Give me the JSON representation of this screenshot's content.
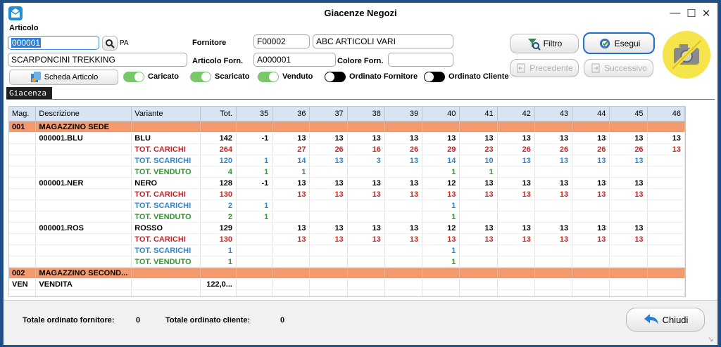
{
  "window": {
    "title": "Giacenze Negozi"
  },
  "articolo": {
    "group_label": "Articolo",
    "code_value": "000001",
    "code_suffix": "PA",
    "description_value": "SCARPONCINI TREKKING",
    "scheda_label": "Scheda Articolo"
  },
  "fornitore": {
    "label": "Fornitore",
    "code_value": "F00002",
    "name_value": "ABC ARTICOLI VARI",
    "articolo_forn_label": "Articolo Forn.",
    "articolo_forn_value": "A000001",
    "colore_forn_label": "Colore Forn.",
    "colore_forn_value": ""
  },
  "buttons": {
    "filtro": "Filtro",
    "esegui": "Esegui",
    "precedente": "Precedente",
    "successivo": "Successivo",
    "chiudi": "Chiudi"
  },
  "toggles": [
    {
      "label": "Caricato",
      "state": "on"
    },
    {
      "label": "Scaricato",
      "state": "on"
    },
    {
      "label": "Venduto",
      "state": "on"
    },
    {
      "label": "Ordinato Fornitore",
      "state": "off"
    },
    {
      "label": "Ordinato Cliente",
      "state": "off"
    }
  ],
  "tab": {
    "label": "Giacenza"
  },
  "grid": {
    "headers": [
      "Mag.",
      "Descrizione",
      "Variante",
      "Tot.",
      "35",
      "36",
      "37",
      "38",
      "39",
      "40",
      "41",
      "42",
      "43",
      "44",
      "45",
      "46"
    ],
    "rows": [
      {
        "type": "group",
        "cells": [
          "001",
          "MAGAZZINO SEDE",
          "",
          "",
          "",
          "",
          "",
          "",
          "",
          "",
          "",
          "",
          "",
          "",
          "",
          ""
        ]
      },
      {
        "type": "data",
        "color": "black",
        "cells": [
          "",
          "000001.BLU",
          "BLU",
          "142",
          "-1",
          "13",
          "13",
          "13",
          "13",
          "13",
          "13",
          "13",
          "13",
          "13",
          "13",
          "13"
        ]
      },
      {
        "type": "data",
        "color": "red",
        "cells": [
          "",
          "",
          "TOT. CARICHI",
          "264",
          "",
          "27",
          "26",
          "16",
          "26",
          "29",
          "23",
          "26",
          "26",
          "26",
          "26",
          "13"
        ]
      },
      {
        "type": "data",
        "color": "blue",
        "cells": [
          "",
          "",
          "TOT. SCARICHI",
          "120",
          "1",
          "14",
          "13",
          "3",
          "13",
          "14",
          "10",
          "13",
          "13",
          "13",
          "13",
          ""
        ]
      },
      {
        "type": "data",
        "color": "green",
        "cells": [
          "",
          "",
          "TOT. VENDUTO",
          "4",
          "1",
          "1",
          "",
          "",
          "",
          "1",
          "1",
          "",
          "",
          "",
          "",
          ""
        ]
      },
      {
        "type": "data",
        "color": "black",
        "cells": [
          "",
          "000001.NER",
          "NERO",
          "128",
          "-1",
          "13",
          "13",
          "13",
          "13",
          "12",
          "13",
          "13",
          "13",
          "13",
          "13",
          ""
        ]
      },
      {
        "type": "data",
        "color": "red",
        "cells": [
          "",
          "",
          "TOT. CARICHI",
          "130",
          "",
          "13",
          "13",
          "13",
          "13",
          "13",
          "13",
          "13",
          "13",
          "13",
          "13",
          ""
        ]
      },
      {
        "type": "data",
        "color": "blue",
        "cells": [
          "",
          "",
          "TOT. SCARICHI",
          "2",
          "1",
          "",
          "",
          "",
          "",
          "1",
          "",
          "",
          "",
          "",
          "",
          ""
        ]
      },
      {
        "type": "data",
        "color": "green",
        "cells": [
          "",
          "",
          "TOT. VENDUTO",
          "2",
          "1",
          "",
          "",
          "",
          "",
          "1",
          "",
          "",
          "",
          "",
          "",
          ""
        ]
      },
      {
        "type": "data",
        "color": "black",
        "cells": [
          "",
          "000001.ROS",
          "ROSSO",
          "129",
          "",
          "13",
          "13",
          "13",
          "13",
          "12",
          "13",
          "13",
          "13",
          "13",
          "13",
          ""
        ]
      },
      {
        "type": "data",
        "color": "red",
        "cells": [
          "",
          "",
          "TOT. CARICHI",
          "130",
          "",
          "13",
          "13",
          "13",
          "13",
          "13",
          "13",
          "13",
          "13",
          "13",
          "13",
          ""
        ]
      },
      {
        "type": "data",
        "color": "blue",
        "cells": [
          "",
          "",
          "TOT. SCARICHI",
          "1",
          "",
          "",
          "",
          "",
          "",
          "1",
          "",
          "",
          "",
          "",
          "",
          ""
        ]
      },
      {
        "type": "data",
        "color": "green",
        "cells": [
          "",
          "",
          "TOT. VENDUTO",
          "1",
          "",
          "",
          "",
          "",
          "",
          "1",
          "",
          "",
          "",
          "",
          "",
          ""
        ]
      },
      {
        "type": "group",
        "cells": [
          "002",
          "MAGAZZINO SECOND...",
          "",
          "",
          "",
          "",
          "",
          "",
          "",
          "",
          "",
          "",
          "",
          "",
          "",
          ""
        ]
      },
      {
        "type": "data",
        "color": "black",
        "cells": [
          "VEN",
          "VENDITA",
          "",
          "122,0...",
          "",
          "",
          "",
          "",
          "",
          "",
          "",
          "",
          "",
          "",
          "",
          ""
        ]
      },
      {
        "type": "empty",
        "cells": [
          "",
          "",
          "",
          "",
          "",
          "",
          "",
          "",
          "",
          "",
          "",
          "",
          "",
          "",
          "",
          ""
        ]
      },
      {
        "type": "empty",
        "cells": [
          "",
          "",
          "",
          "",
          "",
          "",
          "",
          "",
          "",
          "",
          "",
          "",
          "",
          "",
          "",
          ""
        ]
      }
    ]
  },
  "footer": {
    "tot_fornitore_label": "Totale ordinato fornitore:",
    "tot_fornitore_value": "0",
    "tot_cliente_label": "Totale ordinato cliente:",
    "tot_cliente_value": "0"
  },
  "colors": {
    "group_row": "#f49a6e",
    "header": "#d7e4f1",
    "carichi": "#d42020",
    "scarichi": "#2c86d6",
    "venduto": "#2e9a2e",
    "esegui_border": "#1a6fd1"
  }
}
